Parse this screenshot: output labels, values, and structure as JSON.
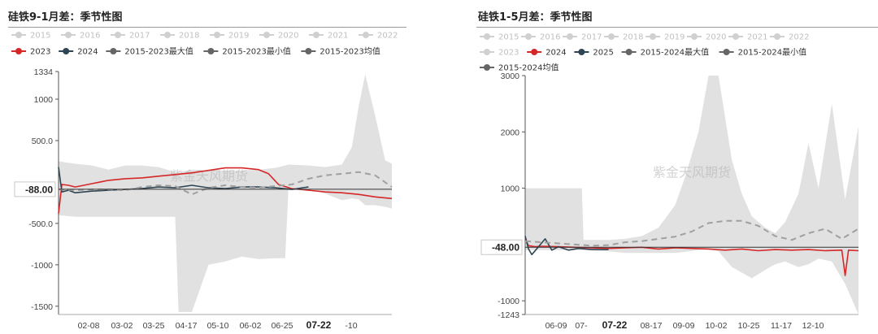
{
  "chart_data": [
    {
      "type": "line",
      "title": "硅铁9-1月差：季节性图",
      "watermark": "紫金天风期货",
      "legend": {
        "placement": "top",
        "faded": [
          "2015",
          "2016",
          "2017",
          "2018",
          "2019",
          "2020",
          "2021",
          "2022"
        ],
        "active": [
          {
            "name": "2023",
            "color": "#d62728"
          },
          {
            "name": "2024",
            "color": "#2f4554"
          },
          {
            "name": "2015-2023最大值",
            "color": "#666666"
          },
          {
            "name": "2015-2023最小值",
            "color": "#666666"
          },
          {
            "name": "2015-2023均值",
            "color": "#666666"
          }
        ]
      },
      "ylim": [
        -1600,
        1334
      ],
      "y_ticks": [
        1334,
        1000,
        500.0,
        -500.0,
        -1000,
        -1500
      ],
      "y_tick_labels": [
        "1334",
        "1000",
        "500.0",
        "-500.0",
        "-1000",
        "-1500"
      ],
      "current_value": -88.0,
      "current_value_label": "-88.00",
      "x_ticks": [
        "02-08",
        "03-02",
        "03-25",
        "04-17",
        "05-10",
        "06-02",
        "06-25",
        "07-22",
        "-10"
      ],
      "x_highlight": "07-22",
      "range_band": {
        "x": [
          0,
          5,
          10,
          15,
          20,
          25,
          30,
          35,
          36,
          40,
          45,
          50,
          55,
          60,
          65,
          68,
          69,
          75,
          80,
          85,
          88,
          90,
          92,
          95,
          98,
          100
        ],
        "max": [
          250,
          220,
          200,
          150,
          200,
          200,
          180,
          120,
          120,
          150,
          140,
          140,
          140,
          150,
          170,
          200,
          210,
          200,
          180,
          210,
          420,
          900,
          1300,
          800,
          260,
          220
        ],
        "min": [
          -400,
          -420,
          -420,
          -420,
          -420,
          -420,
          -420,
          -420,
          -1570,
          -1570,
          -1000,
          -960,
          -900,
          -930,
          -920,
          -920,
          -60,
          -80,
          -140,
          -220,
          -200,
          -210,
          -280,
          -280,
          -300,
          -320
        ]
      },
      "series": [
        {
          "name": "2023",
          "color": "#d62728",
          "x": [
            0,
            1,
            3,
            5,
            10,
            15,
            20,
            25,
            30,
            35,
            40,
            45,
            50,
            55,
            60,
            63,
            66,
            70,
            75,
            80,
            85,
            90,
            95,
            100
          ],
          "values": [
            -380,
            -30,
            -40,
            -60,
            -20,
            20,
            40,
            50,
            70,
            90,
            110,
            140,
            170,
            170,
            150,
            100,
            -30,
            -80,
            -100,
            -120,
            -130,
            -150,
            -180,
            -200
          ]
        },
        {
          "name": "2024",
          "color": "#2f4554",
          "x": [
            0,
            1,
            3,
            5,
            10,
            15,
            20,
            25,
            30,
            35,
            40,
            45,
            50,
            55,
            60,
            65,
            70,
            75
          ],
          "values": [
            180,
            -120,
            -100,
            -130,
            -110,
            -100,
            -90,
            -80,
            -60,
            -70,
            -40,
            -70,
            -80,
            -60,
            -60,
            -70,
            -90,
            -60
          ]
        },
        {
          "name": "2015-2023均值",
          "color": "#a0a0a0",
          "dashed": true,
          "x": [
            0,
            5,
            10,
            15,
            20,
            25,
            30,
            35,
            40,
            45,
            50,
            55,
            60,
            65,
            70,
            75,
            80,
            85,
            90,
            95,
            100
          ],
          "values": [
            -90,
            -100,
            -90,
            -90,
            -100,
            -60,
            -40,
            -50,
            -150,
            -70,
            -40,
            -60,
            -70,
            -50,
            -30,
            40,
            80,
            100,
            120,
            80,
            -60
          ]
        }
      ]
    },
    {
      "type": "line",
      "title": "硅铁1-5月差：季节性图",
      "watermark": "紫金天风期货",
      "legend": {
        "placement": "top",
        "faded": [
          "2015",
          "2016",
          "2017",
          "2018",
          "2019",
          "2020",
          "2021",
          "2022",
          "2023"
        ],
        "active": [
          {
            "name": "2024",
            "color": "#d62728"
          },
          {
            "name": "2025",
            "color": "#2f4554"
          },
          {
            "name": "2015-2024最大值",
            "color": "#666666"
          },
          {
            "name": "2015-2024最小值",
            "color": "#666666"
          },
          {
            "name": "2015-2024均值",
            "color": "#666666"
          }
        ]
      },
      "ylim": [
        -1243,
        3000
      ],
      "y_ticks": [
        3000,
        2000,
        1000,
        -1000,
        -1243
      ],
      "y_tick_labels": [
        "3000",
        "2000",
        "1000",
        "-1000",
        "-1243"
      ],
      "current_value": -48.0,
      "current_value_label": "-48.00",
      "x_ticks": [
        "06-09",
        "07-",
        "07-22",
        "08-17",
        "09-09",
        "10-02",
        "10-25",
        "11-17",
        "12-10"
      ],
      "x_highlight": "07-22",
      "range_band": {
        "x": [
          0,
          3,
          10,
          17,
          17.5,
          25,
          30,
          35,
          40,
          45,
          48,
          52,
          55,
          58,
          62,
          65,
          68,
          72,
          75,
          78,
          82,
          85,
          88,
          92,
          96,
          100
        ],
        "max": [
          1000,
          1000,
          1000,
          1000,
          80,
          80,
          100,
          150,
          300,
          700,
          1200,
          2000,
          3000,
          3000,
          1500,
          900,
          500,
          300,
          200,
          400,
          900,
          1800,
          1000,
          2500,
          800,
          2100
        ],
        "min": [
          -100,
          -100,
          -100,
          -100,
          -100,
          -120,
          -150,
          -150,
          -150,
          -150,
          -130,
          -100,
          -80,
          -120,
          -400,
          -500,
          -600,
          -450,
          -350,
          -300,
          -400,
          -350,
          -250,
          -300,
          -700,
          -1243
        ]
      },
      "series": [
        {
          "name": "2024",
          "color": "#d62728",
          "x": [
            0,
            1,
            3,
            5,
            10,
            15,
            20,
            25,
            30,
            35,
            40,
            45,
            50,
            55,
            60,
            65,
            70,
            75,
            80,
            85,
            90,
            95,
            96,
            97,
            100
          ],
          "values": [
            100,
            -20,
            -40,
            -30,
            -40,
            -50,
            -60,
            -70,
            -60,
            -50,
            -80,
            -60,
            -70,
            -80,
            -100,
            -80,
            -110,
            -90,
            -100,
            -90,
            -110,
            -100,
            -550,
            -100,
            -110
          ]
        },
        {
          "name": "2025",
          "color": "#2f4554",
          "x": [
            0,
            1,
            2,
            4,
            6,
            8,
            10,
            13,
            16,
            20,
            25
          ],
          "values": [
            150,
            -80,
            -180,
            -40,
            100,
            -100,
            -40,
            -100,
            -70,
            -90,
            -90
          ]
        },
        {
          "name": "2015-2024均值",
          "color": "#a0a0a0",
          "dashed": true,
          "x": [
            0,
            5,
            10,
            15,
            20,
            25,
            30,
            35,
            40,
            45,
            50,
            55,
            60,
            65,
            70,
            75,
            80,
            85,
            90,
            95,
            100
          ],
          "values": [
            60,
            40,
            20,
            0,
            -20,
            -10,
            40,
            60,
            100,
            140,
            230,
            380,
            420,
            420,
            330,
            150,
            80,
            200,
            280,
            100,
            280
          ]
        }
      ]
    }
  ]
}
